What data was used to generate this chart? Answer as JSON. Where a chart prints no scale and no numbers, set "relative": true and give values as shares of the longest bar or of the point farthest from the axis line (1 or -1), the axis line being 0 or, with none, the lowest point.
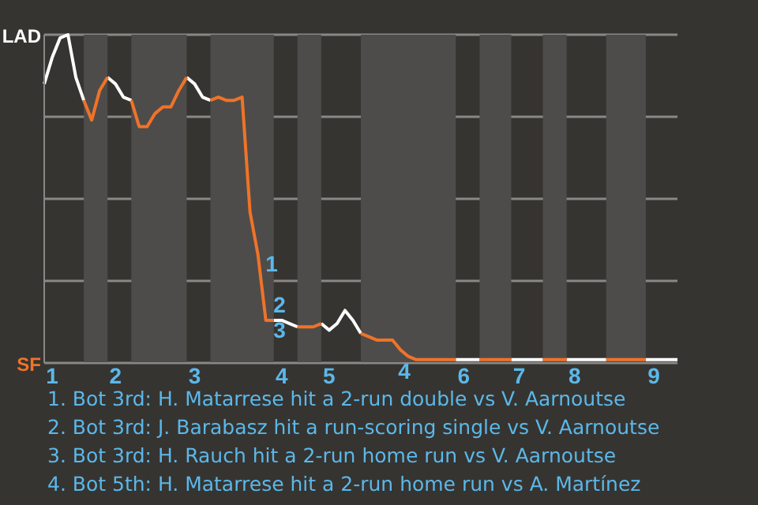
{
  "chart_data": {
    "type": "line",
    "relative": true,
    "categories": [
      null,
      "1",
      null,
      null,
      null,
      null,
      null,
      null,
      null,
      "2",
      null,
      null,
      null,
      null,
      null,
      null,
      null,
      null,
      null,
      "3",
      null,
      null,
      null,
      null,
      null,
      null,
      null,
      null,
      null,
      null,
      "4",
      null,
      null,
      null,
      null,
      null,
      "5",
      null,
      null,
      null,
      null,
      null,
      null,
      null,
      null,
      null,
      null,
      null,
      null,
      null,
      null,
      null,
      null,
      "6",
      null,
      null,
      null,
      null,
      null,
      null,
      "7",
      null,
      null,
      null,
      null,
      null,
      null,
      "8",
      null,
      null,
      null,
      null,
      null,
      null,
      null,
      null,
      null,
      "9",
      null,
      null,
      null
    ],
    "grid": "y",
    "series": [
      {
        "color": "#ffffff",
        "values": [
          0.85,
          0.93,
          0.99,
          1,
          0.87,
          0.8,
          null,
          null,
          0.87,
          0.85,
          0.81,
          0.8,
          null,
          null,
          null,
          null,
          null,
          null,
          0.87,
          0.85,
          0.81,
          0.8,
          null,
          null,
          null,
          null,
          null,
          null,
          null,
          0.13,
          0.13,
          0.12,
          0.11,
          null,
          null,
          0.12,
          0.1,
          0.12,
          0.16,
          0.13,
          0.09,
          null,
          null,
          null,
          null,
          null,
          null,
          null,
          null,
          null,
          null,
          null,
          0.01,
          0.01,
          0.01,
          0.01,
          null,
          null,
          null,
          0.01,
          0.01,
          0.01,
          0.01,
          0.01,
          null,
          null,
          0.01,
          0.01,
          0.01,
          0.01,
          0.01,
          0.01,
          null,
          null,
          null,
          null,
          0.01,
          0.01,
          0.01,
          0.01,
          0.01
        ]
      },
      {
        "color": "#f07328",
        "values": [
          null,
          null,
          null,
          null,
          null,
          0.8,
          0.74,
          0.83,
          0.87,
          null,
          null,
          0.8,
          0.72,
          0.72,
          0.76,
          0.78,
          0.78,
          0.83,
          0.87,
          null,
          null,
          0.8,
          0.81,
          0.8,
          0.8,
          0.81,
          0.46,
          0.33,
          0.13,
          0.13,
          null,
          null,
          0.11,
          0.11,
          0.11,
          0.12,
          null,
          null,
          null,
          null,
          0.09,
          0.08,
          0.07,
          0.07,
          0.07,
          0.04,
          0.02,
          0.01,
          0.01,
          0.01,
          0.01,
          0.01,
          0.01,
          null,
          null,
          0.01,
          0.01,
          0.01,
          0.01,
          0.01,
          null,
          null,
          null,
          0.01,
          0.01,
          0.01,
          0.01,
          null,
          null,
          null,
          null,
          0.01,
          0.01,
          0.01,
          0.01,
          0.01,
          0.01,
          null,
          null,
          null,
          null
        ]
      }
    ],
    "annotations": [
      "LAD",
      "SF",
      "1",
      "2",
      "3",
      "4",
      "1. Bot 3rd: H. Matarrese hit a 2-run double vs V. Aarnoutse",
      "2. Bot 3rd: J. Barabasz hit a run-scoring single vs V. Aarnoutse",
      "3. Bot 3rd: H. Rauch hit a 2-run home run vs V. Aarnoutse",
      "4. Bot 5th: H. Matarrese hit a 2-run home run vs A. Martínez"
    ]
  }
}
